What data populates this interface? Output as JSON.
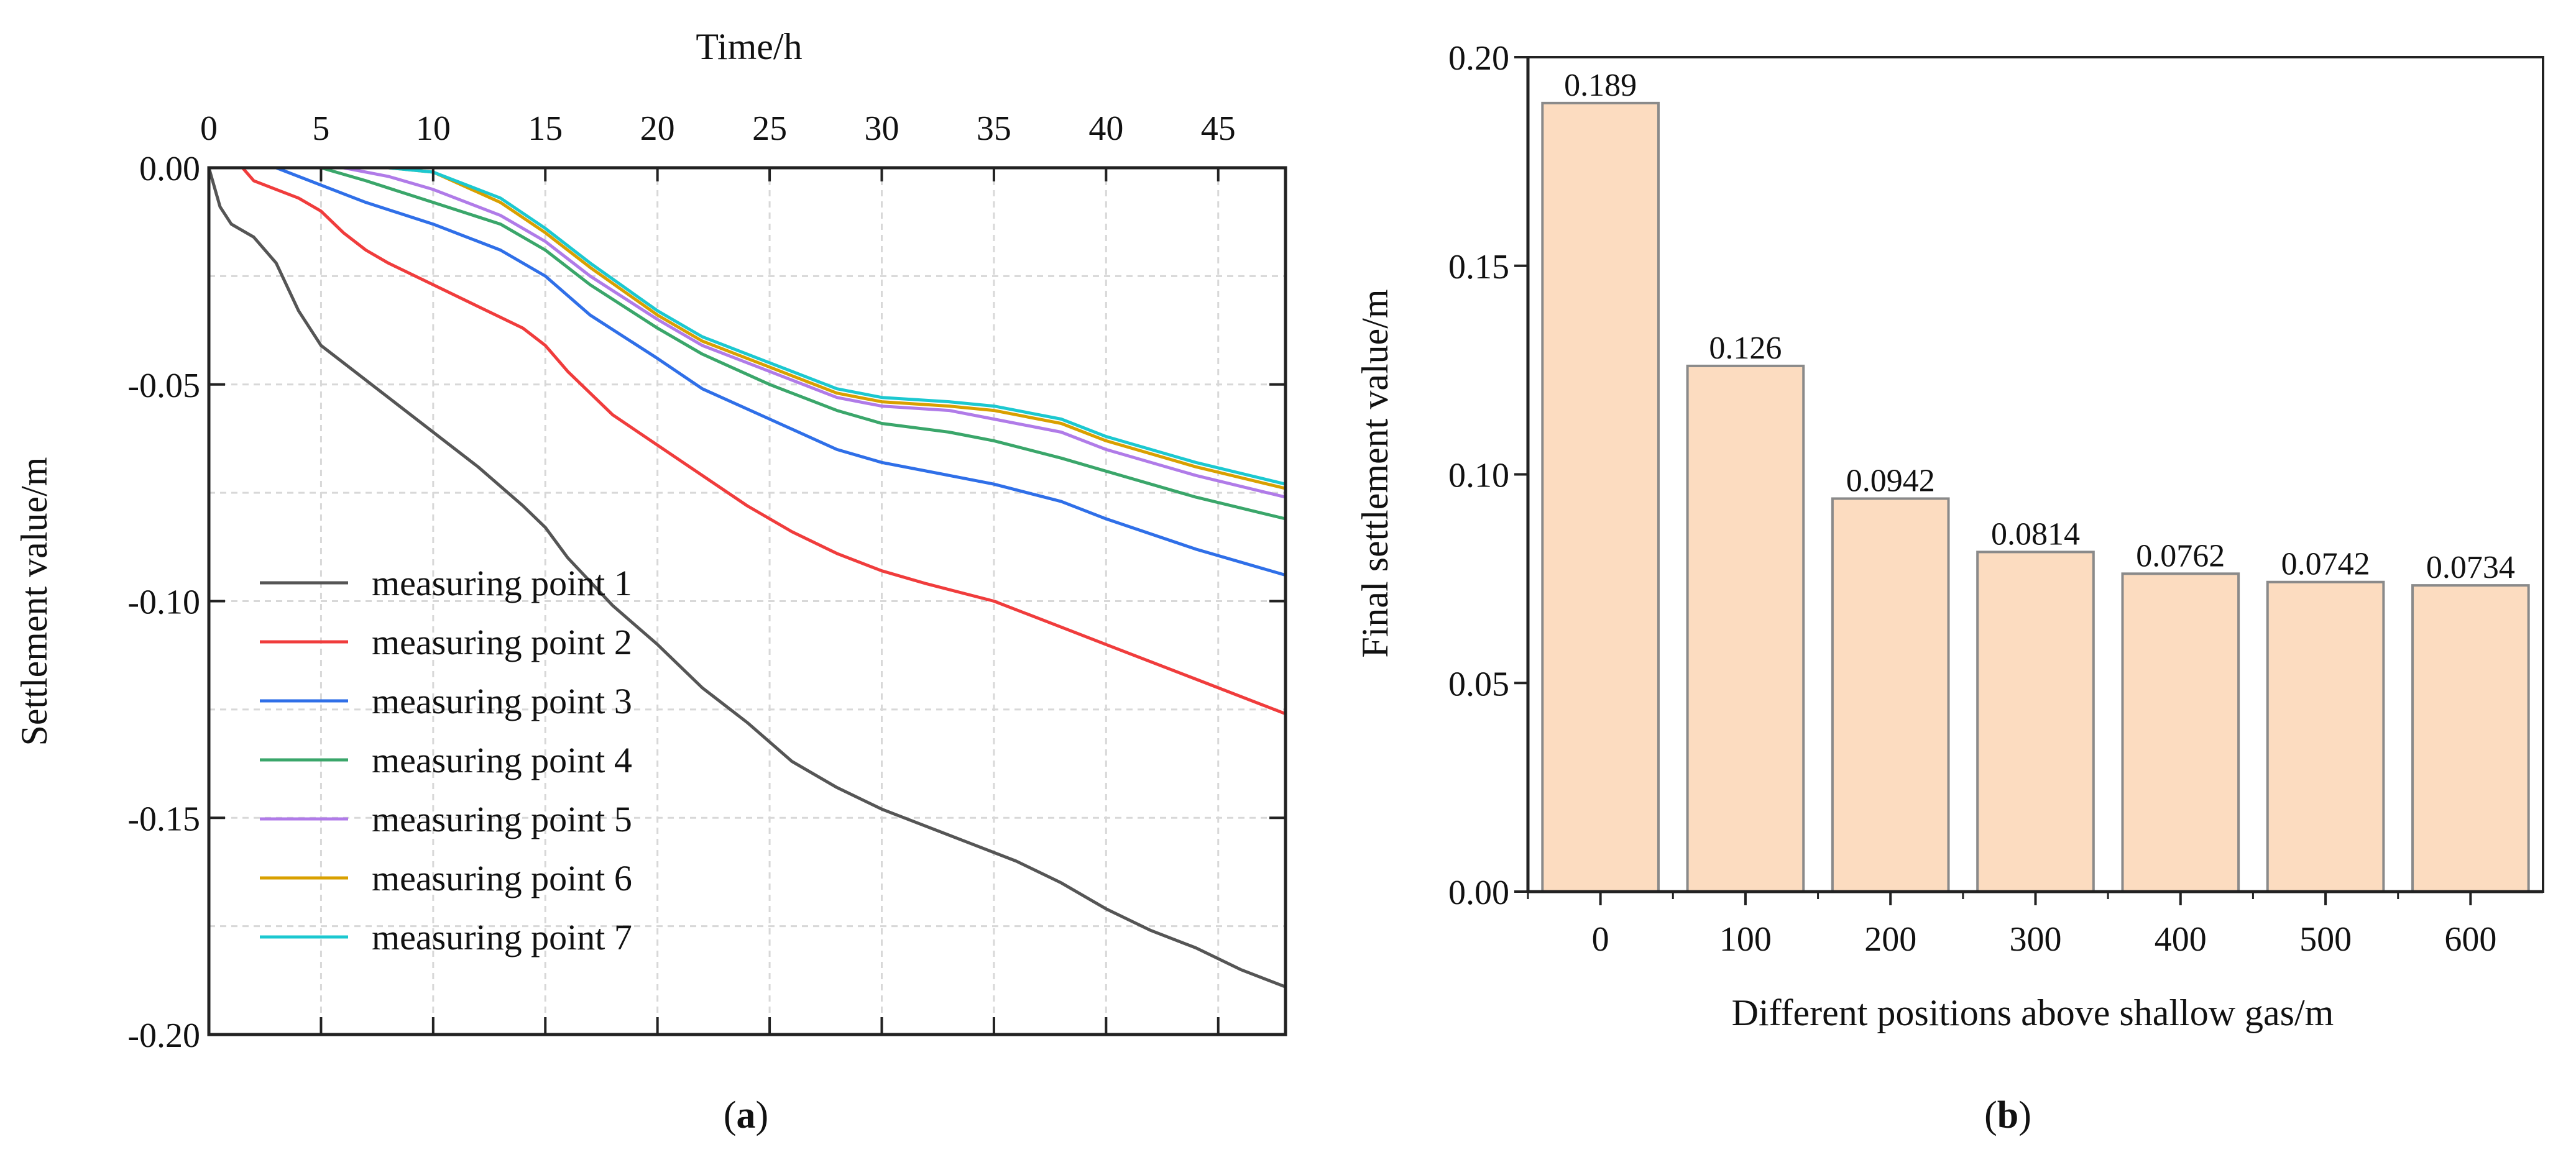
{
  "chart_data": [
    {
      "type": "line",
      "panel_label": "(a)",
      "panel_letter": "a",
      "title": "",
      "xlabel": "Time/h",
      "ylabel": "Settlement value/m",
      "xlim": [
        0,
        48
      ],
      "ylim": [
        -0.2,
        0
      ],
      "xticks": [
        0,
        5,
        10,
        15,
        20,
        25,
        30,
        35,
        40,
        45
      ],
      "xtick_labels": [
        "0",
        "5",
        "10",
        "15",
        "20",
        "25",
        "30",
        "35",
        "40",
        "45"
      ],
      "yticks": [
        0,
        -0.05,
        -0.1,
        -0.15,
        -0.2
      ],
      "ytick_labels": [
        "0.00",
        "-0.05",
        "-0.10",
        "-0.15",
        "-0.20"
      ],
      "grid": true,
      "legend_position": "bottom-left",
      "series": [
        {
          "name": "measuring point 1",
          "color": "#555555",
          "x": [
            0,
            0.5,
            1,
            2,
            3,
            4,
            5,
            6,
            8,
            10,
            12,
            14,
            15,
            16,
            18,
            20,
            22,
            24,
            26,
            28,
            30,
            32,
            34,
            36,
            38,
            40,
            42,
            44,
            46,
            48
          ],
          "y": [
            0,
            -0.009,
            -0.013,
            -0.016,
            -0.022,
            -0.033,
            -0.041,
            -0.045,
            -0.053,
            -0.061,
            -0.069,
            -0.078,
            -0.083,
            -0.09,
            -0.101,
            -0.11,
            -0.12,
            -0.128,
            -0.137,
            -0.143,
            -0.148,
            -0.152,
            -0.156,
            -0.16,
            -0.165,
            -0.171,
            -0.176,
            -0.18,
            -0.185,
            -0.189
          ]
        },
        {
          "name": "measuring point 2",
          "color": "#f03c3c",
          "x": [
            0,
            1.5,
            2,
            3,
            4,
            5,
            6,
            7,
            8,
            10,
            12,
            14,
            15,
            16,
            18,
            20,
            22,
            24,
            26,
            28,
            30,
            32,
            35,
            38,
            40,
            44,
            48
          ],
          "y": [
            0,
            0,
            -0.003,
            -0.005,
            -0.007,
            -0.01,
            -0.015,
            -0.019,
            -0.022,
            -0.027,
            -0.032,
            -0.037,
            -0.041,
            -0.047,
            -0.057,
            -0.064,
            -0.071,
            -0.078,
            -0.084,
            -0.089,
            -0.093,
            -0.096,
            -0.1,
            -0.106,
            -0.11,
            -0.118,
            -0.126
          ]
        },
        {
          "name": "measuring point 3",
          "color": "#2f6fe8",
          "x": [
            0,
            3,
            5,
            7,
            10,
            13,
            15,
            17,
            20,
            22,
            25,
            28,
            30,
            33,
            35,
            38,
            40,
            44,
            48
          ],
          "y": [
            0,
            0,
            -0.004,
            -0.008,
            -0.013,
            -0.019,
            -0.025,
            -0.034,
            -0.044,
            -0.051,
            -0.058,
            -0.065,
            -0.068,
            -0.071,
            -0.073,
            -0.077,
            -0.081,
            -0.088,
            -0.094
          ]
        },
        {
          "name": "measuring point 4",
          "color": "#3aa66a",
          "x": [
            0,
            5,
            7,
            10,
            13,
            15,
            17,
            20,
            22,
            25,
            28,
            30,
            33,
            35,
            38,
            40,
            44,
            48
          ],
          "y": [
            0,
            0,
            -0.003,
            -0.008,
            -0.013,
            -0.019,
            -0.027,
            -0.037,
            -0.043,
            -0.05,
            -0.056,
            -0.059,
            -0.061,
            -0.063,
            -0.067,
            -0.07,
            -0.076,
            -0.081
          ]
        },
        {
          "name": "measuring point 5",
          "color": "#b07be8",
          "x": [
            0,
            6,
            8,
            10,
            13,
            15,
            17,
            20,
            22,
            25,
            28,
            30,
            33,
            35,
            38,
            40,
            44,
            48
          ],
          "y": [
            0,
            0,
            -0.002,
            -0.005,
            -0.011,
            -0.017,
            -0.025,
            -0.035,
            -0.041,
            -0.047,
            -0.053,
            -0.055,
            -0.056,
            -0.058,
            -0.061,
            -0.065,
            -0.071,
            -0.076
          ]
        },
        {
          "name": "measuring point 6",
          "color": "#d9a000",
          "x": [
            0,
            8,
            10,
            13,
            15,
            17,
            20,
            22,
            25,
            28,
            30,
            33,
            35,
            38,
            40,
            44,
            48
          ],
          "y": [
            0,
            0,
            -0.001,
            -0.008,
            -0.015,
            -0.023,
            -0.034,
            -0.04,
            -0.046,
            -0.052,
            -0.054,
            -0.055,
            -0.056,
            -0.059,
            -0.063,
            -0.069,
            -0.074
          ]
        },
        {
          "name": "measuring point 7",
          "color": "#1cc8d0",
          "x": [
            0,
            8,
            10,
            13,
            15,
            17,
            20,
            22,
            25,
            28,
            30,
            33,
            35,
            38,
            40,
            44,
            48
          ],
          "y": [
            0,
            0,
            -0.001,
            -0.007,
            -0.014,
            -0.022,
            -0.033,
            -0.039,
            -0.045,
            -0.051,
            -0.053,
            -0.054,
            -0.055,
            -0.058,
            -0.062,
            -0.068,
            -0.073
          ]
        }
      ]
    },
    {
      "type": "bar",
      "panel_label": "(b)",
      "panel_letter": "b",
      "title": "",
      "xlabel": "Different positions above shallow gas/m",
      "ylabel": "Final settlement value/m",
      "categories": [
        "0",
        "100",
        "200",
        "300",
        "400",
        "500",
        "600"
      ],
      "values": [
        0.189,
        0.126,
        0.0942,
        0.0814,
        0.0762,
        0.0742,
        0.0734
      ],
      "value_labels": [
        "0.189",
        "0.126",
        "0.0942",
        "0.0814",
        "0.0762",
        "0.0742",
        "0.0734"
      ],
      "ylim": [
        0,
        0.2
      ],
      "yticks": [
        0,
        0.05,
        0.1,
        0.15,
        0.2
      ],
      "ytick_labels": [
        "0.00",
        "0.05",
        "0.10",
        "0.15",
        "0.20"
      ],
      "grid": false,
      "bar_color": "#fcdcc0",
      "bar_edge_color": "#8a8a8a"
    }
  ]
}
